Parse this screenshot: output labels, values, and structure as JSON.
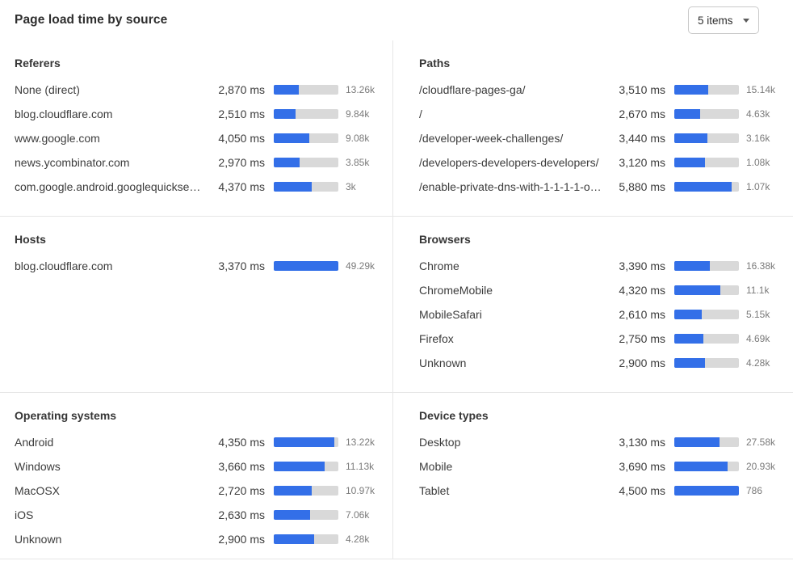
{
  "header": {
    "title": "Page load time by source",
    "items_dropdown": {
      "value": "5 items"
    }
  },
  "colors": {
    "bar_fill": "#336fe8",
    "bar_track": "#d9d9d9",
    "divider": "#e6e6e6",
    "count_text": "#7a7a7a",
    "main_text": "#3c3c3c"
  },
  "chart_data": {
    "type": "bar",
    "unit": "ms",
    "layout_hint": "six sections in a 2x3 grid; each row shows avg page load time (ms), a horizontal bar proportional to ms relative to section scale_max_ms, and a visit count label",
    "sections": [
      {
        "title": "Referers",
        "scale_max_ms": 7400,
        "rows": [
          {
            "label": "None (direct)",
            "ms": 2870,
            "ms_label": "2,870 ms",
            "count": "13.26k"
          },
          {
            "label": "blog.cloudflare.com",
            "ms": 2510,
            "ms_label": "2,510 ms",
            "count": "9.84k"
          },
          {
            "label": "www.google.com",
            "ms": 4050,
            "ms_label": "4,050 ms",
            "count": "9.08k"
          },
          {
            "label": "news.ycombinator.com",
            "ms": 2970,
            "ms_label": "2,970 ms",
            "count": "3.85k"
          },
          {
            "label": "com.google.android.googlequicksearc...",
            "ms": 4370,
            "ms_label": "4,370 ms",
            "count": "3k"
          }
        ]
      },
      {
        "title": "Paths",
        "scale_max_ms": 6640,
        "rows": [
          {
            "label": "/cloudflare-pages-ga/",
            "ms": 3510,
            "ms_label": "3,510 ms",
            "count": "15.14k"
          },
          {
            "label": "/",
            "ms": 2670,
            "ms_label": "2,670 ms",
            "count": "4.63k"
          },
          {
            "label": "/developer-week-challenges/",
            "ms": 3440,
            "ms_label": "3,440 ms",
            "count": "3.16k"
          },
          {
            "label": "/developers-developers-developers/",
            "ms": 3120,
            "ms_label": "3,120 ms",
            "count": "1.08k"
          },
          {
            "label": "/enable-private-dns-with-1-1-1-1-on-...",
            "ms": 5880,
            "ms_label": "5,880 ms",
            "count": "1.07k"
          }
        ]
      },
      {
        "title": "Hosts",
        "scale_max_ms": 3370,
        "rows": [
          {
            "label": "blog.cloudflare.com",
            "ms": 3370,
            "ms_label": "3,370 ms",
            "count": "49.29k"
          }
        ]
      },
      {
        "title": "Browsers",
        "scale_max_ms": 6100,
        "rows": [
          {
            "label": "Chrome",
            "ms": 3390,
            "ms_label": "3,390 ms",
            "count": "16.38k"
          },
          {
            "label": "ChromeMobile",
            "ms": 4320,
            "ms_label": "4,320 ms",
            "count": "11.1k"
          },
          {
            "label": "MobileSafari",
            "ms": 2610,
            "ms_label": "2,610 ms",
            "count": "5.15k"
          },
          {
            "label": "Firefox",
            "ms": 2750,
            "ms_label": "2,750 ms",
            "count": "4.69k"
          },
          {
            "label": "Unknown",
            "ms": 2900,
            "ms_label": "2,900 ms",
            "count": "4.28k"
          }
        ]
      },
      {
        "title": "Operating systems",
        "scale_max_ms": 4650,
        "rows": [
          {
            "label": "Android",
            "ms": 4350,
            "ms_label": "4,350 ms",
            "count": "13.22k"
          },
          {
            "label": "Windows",
            "ms": 3660,
            "ms_label": "3,660 ms",
            "count": "11.13k"
          },
          {
            "label": "MacOSX",
            "ms": 2720,
            "ms_label": "2,720 ms",
            "count": "10.97k"
          },
          {
            "label": "iOS",
            "ms": 2630,
            "ms_label": "2,630 ms",
            "count": "7.06k"
          },
          {
            "label": "Unknown",
            "ms": 2900,
            "ms_label": "2,900 ms",
            "count": "4.28k"
          }
        ]
      },
      {
        "title": "Device types",
        "scale_max_ms": 4500,
        "rows": [
          {
            "label": "Desktop",
            "ms": 3130,
            "ms_label": "3,130 ms",
            "count": "27.58k"
          },
          {
            "label": "Mobile",
            "ms": 3690,
            "ms_label": "3,690 ms",
            "count": "20.93k"
          },
          {
            "label": "Tablet",
            "ms": 4500,
            "ms_label": "4,500 ms",
            "count": "786"
          }
        ]
      }
    ]
  }
}
